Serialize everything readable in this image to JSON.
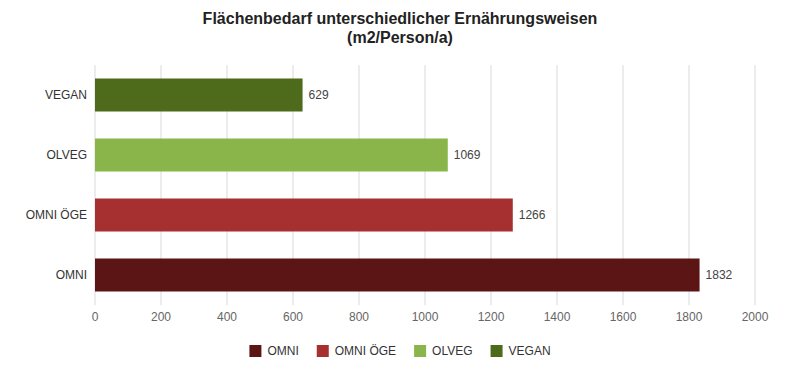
{
  "chart_data": {
    "type": "bar",
    "orientation": "horizontal",
    "title": "Flächenbedarf unterschiedlicher Ernährungsweisen\n(m2/Person/a)",
    "categories": [
      "OMNI",
      "OMNI ÖGE",
      "OLVEG",
      "VEGAN"
    ],
    "values": [
      1832,
      1266,
      1069,
      629
    ],
    "colors": [
      "#5c1515",
      "#a63030",
      "#8ab54a",
      "#4d6b1a"
    ],
    "xlim": [
      0,
      2000
    ],
    "xticks": [
      0,
      200,
      400,
      600,
      800,
      1000,
      1200,
      1400,
      1600,
      1800,
      2000
    ],
    "grid": true,
    "data_labels": true,
    "legend": "bottom"
  }
}
